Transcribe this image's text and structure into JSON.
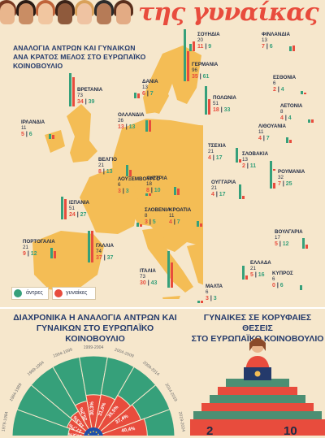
{
  "header": {
    "title": "της γυναίκας"
  },
  "map_section": {
    "subtitle_lines": [
      "ΑΝΑΛΟΓΙΑ ΑΝΤΡΩΝ ΚΑΙ ΓΥΝΑΙΚΩΝ",
      "ΑΝΑ ΚΡΑΤΟΣ ΜΕΛΟΣ ΣΤΟ ΕΥΡΩΠΑΪΚΟ",
      "ΚΟΙΝΟΒΟΥΛΙΟ"
    ],
    "legend": {
      "men_label": "άντρες",
      "women_label": "γυναίκες"
    }
  },
  "chart_data": [
    {
      "type": "bar",
      "title": "ΑΝΑΛΟΓΙΑ ΑΝΤΡΩΝ ΚΑΙ ΓΥΝΑΙΚΩΝ ΑΝΑ ΚΡΑΤΟΣ ΜΕΛΟΣ ΣΤΟ ΕΥΡΩΠΑΪΚΟ ΚΟΙΝΟΒΟΥΛΙΟ",
      "series_names": {
        "men": "άντρες",
        "women": "γυναίκες"
      },
      "countries": [
        {
          "name": "ΣΟΥΗΔΙΑ",
          "total": "20",
          "ratio_w": "11",
          "ratio_m": "9"
        },
        {
          "name": "ΦΙΝΛΑΝΔΙΑ",
          "total": "13",
          "ratio_w": "7",
          "ratio_m": "6"
        },
        {
          "name": "ΕΣΘΟΝΙΑ",
          "total": "6",
          "ratio_w": "2",
          "ratio_m": "4"
        },
        {
          "name": "ΛΕΤΟΝΙΑ",
          "total": "8",
          "ratio_w": "4",
          "ratio_m": "4"
        },
        {
          "name": "ΛΙΘΟΥΑΝΙΑ",
          "total": "11",
          "ratio_w": "4",
          "ratio_m": "7"
        },
        {
          "name": "ΔΑΝΙΑ",
          "total": "13",
          "ratio_w": "6",
          "ratio_m": "7"
        },
        {
          "name": "ΓΕΡΜΑΝΙΑ",
          "total": "96",
          "ratio_w": "35",
          "ratio_m": "61"
        },
        {
          "name": "ΠΟΛΩΝΙΑ",
          "total": "51",
          "ratio_w": "18",
          "ratio_m": "33"
        },
        {
          "name": "ΙΡΛΑΝΔΙΑ",
          "total": "11",
          "ratio_w": "5",
          "ratio_m": "6"
        },
        {
          "name": "ΒΡΕΤΑΝΙΑ",
          "total": "73",
          "ratio_w": "34",
          "ratio_m": "39"
        },
        {
          "name": "ΟΛΛΑΝΔΙΑ",
          "total": "26",
          "ratio_w": "13",
          "ratio_m": "13"
        },
        {
          "name": "ΒΕΛΓΙΟ",
          "total": "21",
          "ratio_w": "8",
          "ratio_m": "13"
        },
        {
          "name": "ΛΟΥΞΕΜΒΟΥΡΓΟ",
          "total": "6",
          "ratio_w": "3",
          "ratio_m": "3"
        },
        {
          "name": "ΤΣΕΧΙΑ",
          "total": "21",
          "ratio_w": "4",
          "ratio_m": "17"
        },
        {
          "name": "ΣΛΟΒΑΚΙΑ",
          "total": "13",
          "ratio_w": "2",
          "ratio_m": "11"
        },
        {
          "name": "ΑΥΣΤΡΙΑ",
          "total": "18",
          "ratio_w": "8",
          "ratio_m": "10"
        },
        {
          "name": "ΟΥΓΓΑΡΙΑ",
          "total": "21",
          "ratio_w": "4",
          "ratio_m": "17"
        },
        {
          "name": "ΡΟΥΜΑΝΙΑ",
          "total": "32",
          "ratio_w": "7",
          "ratio_m": "25"
        },
        {
          "name": "ΙΣΠΑΝΙΑ",
          "total": "51",
          "ratio_w": "24",
          "ratio_m": "27"
        },
        {
          "name": "ΓΑΛΛΙΑ",
          "total": "74",
          "ratio_w": "37",
          "ratio_m": "37"
        },
        {
          "name": "ΣΛΟΒΕΝΙΑ",
          "total": "8",
          "ratio_w": "3",
          "ratio_m": "5"
        },
        {
          "name": "ΚΡΟΑΤΙΑ",
          "total": "11",
          "ratio_w": "4",
          "ratio_m": "7"
        },
        {
          "name": "ΒΟΥΛΓΑΡΙΑ",
          "total": "17",
          "ratio_w": "5",
          "ratio_m": "12"
        },
        {
          "name": "ΠΟΡΤΟΓΑΛΙΑ",
          "total": "21",
          "ratio_w": "9",
          "ratio_m": "12"
        },
        {
          "name": "ΙΤΑΛΙΑ",
          "total": "73",
          "ratio_w": "30",
          "ratio_m": "43"
        },
        {
          "name": "ΕΛΛΑΔΑ",
          "total": "21",
          "ratio_w": "5",
          "ratio_m": "16"
        },
        {
          "name": "ΚΥΠΡΟΣ",
          "total": "6",
          "ratio_w": "0",
          "ratio_m": "6"
        },
        {
          "name": "ΜΑΛΤΑ",
          "total": "6",
          "ratio_w": "3",
          "ratio_m": "3"
        }
      ]
    },
    {
      "type": "area",
      "title": "ΔΙΑΧΡΟΝΙΚΑ Η ΑΝΑΛΟΓΙΑ ΑΝΤΡΩΝ ΚΑΙ ΓΥΝΑΙΚΩΝ ΣΤΟ ΕΥΡΩΠΑΪΚΟ ΚΟΙΝΟΒΟΥΛΙΟ",
      "periods": [
        "1979-1984",
        "1984-1989",
        "1989-1994",
        "1994-1999",
        "1999-2004",
        "2004-2009",
        "2009-2014",
        "2014-2019",
        "2019-2024"
      ],
      "women_percent_labels": [
        "15,2%",
        "17,7%",
        "19,3%",
        "25,2%",
        "30,3%",
        "31,0%",
        "35,5%",
        "37,4%",
        "40,4%"
      ],
      "women_percent": [
        15.2,
        17.7,
        19.3,
        25.2,
        30.3,
        31.0,
        35.5,
        37.4,
        40.4
      ]
    }
  ],
  "bottom_section": {
    "left_title_lines": [
      "ΔΙΑΧΡΟΝΙΚΑ Η ΑΝΑΛΟΓΙΑ ΑΝΤΡΩΝ ΚΑΙ",
      "ΓΥΝΑΙΚΩΝ ΣΤΟ ΕΥΡΩΠΑΪΚΟ ΚΟΙΝΟΒΟΥΛΙΟ"
    ],
    "right_title_lines": [
      "ΓΥΝΑΙΚΕΣ ΣΕ ΚΟΡΥΦΑΙΕΣ ΘΕΣΕΙΣ",
      "ΣΤΟ ΕΥΡΩΠΑΪΚΟ ΚΟΙΝΟΒΟΥΛΙΟ"
    ],
    "bottom_numbers": [
      "2",
      "10"
    ]
  },
  "colors": {
    "women": "#e84c3d",
    "men": "#36a07a",
    "map": "#f4bd55",
    "navy": "#243a6b",
    "background": "#f6e7cc"
  }
}
